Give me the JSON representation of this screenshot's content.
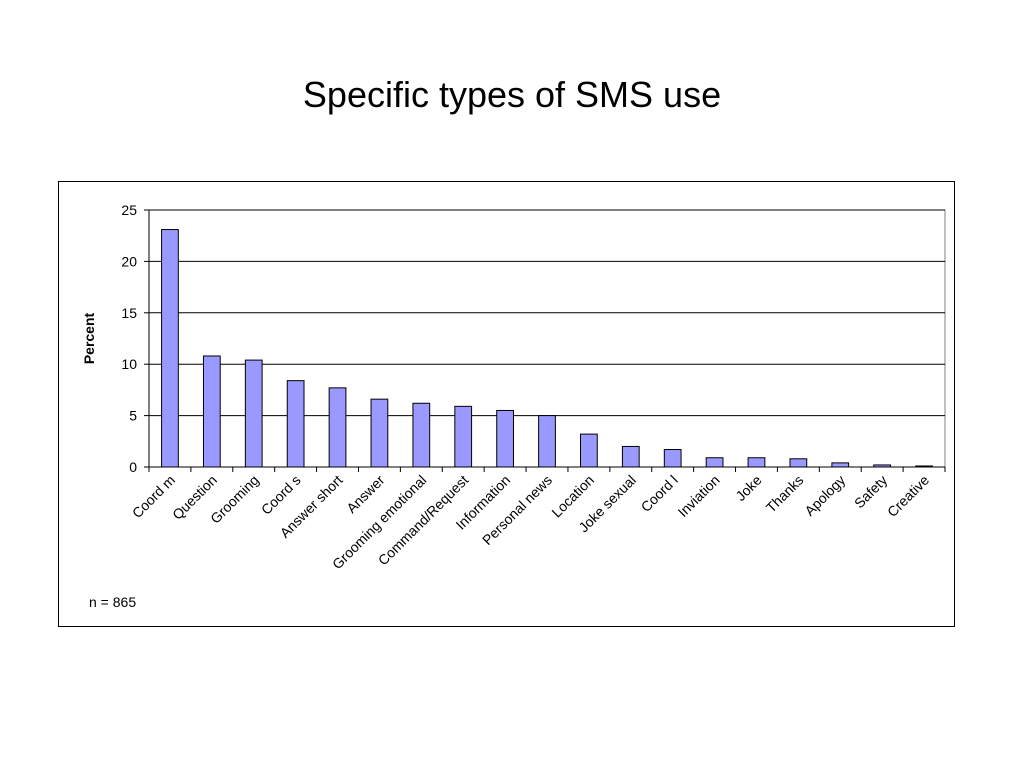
{
  "slide": {
    "title": "Specific types of SMS use",
    "note": "n = 865"
  },
  "chart_data": {
    "type": "bar",
    "title": "",
    "xlabel": "",
    "ylabel": "Percent",
    "ylim": [
      0,
      25
    ],
    "yticks": [
      0,
      5,
      10,
      15,
      20,
      25
    ],
    "grid": true,
    "bar_color": "#9999ff",
    "categories": [
      "Coord m",
      "Question",
      "Grooming",
      "Coord s",
      "Answer short",
      "Answer",
      "Grooming  emotional",
      "Command/Request",
      "Information",
      "Personal news",
      "Location",
      "Joke sexual",
      "Coord l",
      "Inviation",
      "Joke",
      "Thanks",
      "Apology",
      "Safety",
      "Creative"
    ],
    "values": [
      23.1,
      10.8,
      10.4,
      8.4,
      7.7,
      6.6,
      6.2,
      5.9,
      5.5,
      5.0,
      3.2,
      2.0,
      1.7,
      0.9,
      0.9,
      0.8,
      0.4,
      0.2,
      0.1
    ]
  }
}
